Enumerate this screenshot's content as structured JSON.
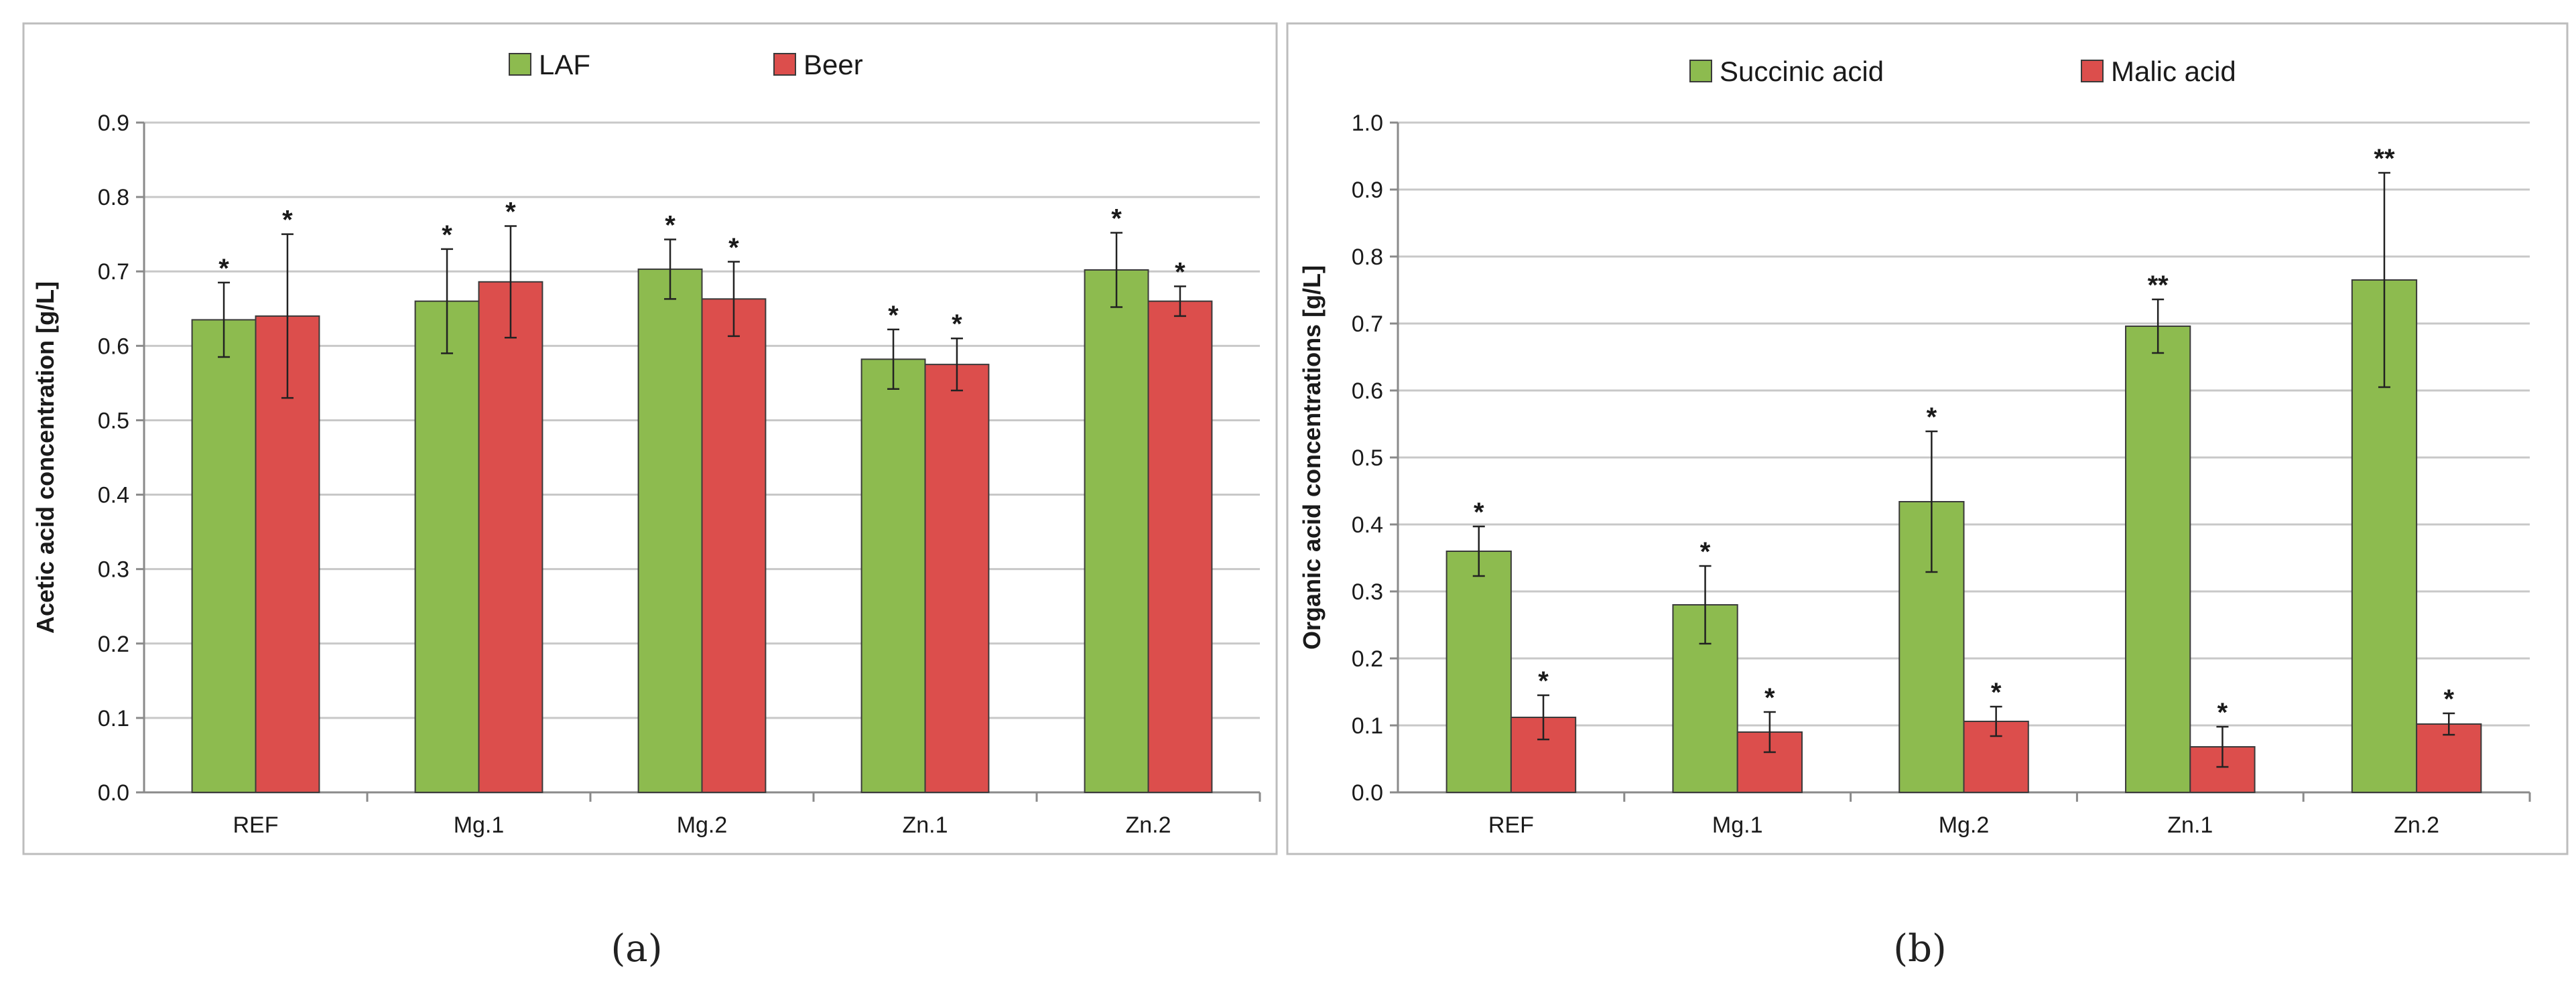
{
  "colors": {
    "green": "#8dbb4f",
    "red": "#dc4e4c",
    "border": "#bdbdbd",
    "grid": "#c8c8c8"
  },
  "captions": [
    "(a)",
    "(b)"
  ],
  "chart_data": [
    {
      "type": "bar",
      "title": "",
      "xlabel": "",
      "ylabel": "Acetic acid concentration [g/L]",
      "ylim": [
        0,
        0.9
      ],
      "yticks": [
        "0.0",
        "0.1",
        "0.2",
        "0.3",
        "0.4",
        "0.5",
        "0.6",
        "0.7",
        "0.8",
        "0.9"
      ],
      "grid": true,
      "legend_position": "top",
      "categories": [
        "REF",
        "Mg.1",
        "Mg.2",
        "Zn.1",
        "Zn.2"
      ],
      "series": [
        {
          "name": "LAF",
          "color": "#8dbb4f",
          "values": [
            0.635,
            0.66,
            0.703,
            0.582,
            0.702
          ],
          "errors": [
            0.05,
            0.07,
            0.04,
            0.04,
            0.05
          ],
          "annotations": [
            "*",
            "*",
            "*",
            "*",
            "*"
          ]
        },
        {
          "name": "Beer",
          "color": "#dc4e4c",
          "values": [
            0.64,
            0.686,
            0.663,
            0.575,
            0.66
          ],
          "errors": [
            0.11,
            0.075,
            0.05,
            0.035,
            0.02
          ],
          "annotations": [
            "*",
            "*",
            "*",
            "*",
            "*"
          ]
        }
      ]
    },
    {
      "type": "bar",
      "title": "",
      "xlabel": "",
      "ylabel": "Organic acid concentrations [g/L]",
      "ylim": [
        0,
        1.0
      ],
      "yticks": [
        "0.0",
        "0.1",
        "0.2",
        "0.3",
        "0.4",
        "0.5",
        "0.6",
        "0.7",
        "0.8",
        "0.9",
        "1.0"
      ],
      "grid": true,
      "legend_position": "top",
      "categories": [
        "REF",
        "Mg.1",
        "Mg.2",
        "Zn.1",
        "Zn.2"
      ],
      "series": [
        {
          "name": "Succinic acid",
          "color": "#8dbb4f",
          "values": [
            0.36,
            0.28,
            0.434,
            0.696,
            0.765
          ],
          "errors": [
            0.037,
            0.058,
            0.105,
            0.04,
            0.16
          ],
          "annotations": [
            "*",
            "*",
            "*",
            "**",
            "**"
          ]
        },
        {
          "name": "Malic acid",
          "color": "#dc4e4c",
          "values": [
            0.112,
            0.09,
            0.106,
            0.068,
            0.102
          ],
          "errors": [
            0.033,
            0.03,
            0.022,
            0.03,
            0.016
          ],
          "annotations": [
            "*",
            "*",
            "*",
            "*",
            "*"
          ]
        }
      ]
    }
  ]
}
